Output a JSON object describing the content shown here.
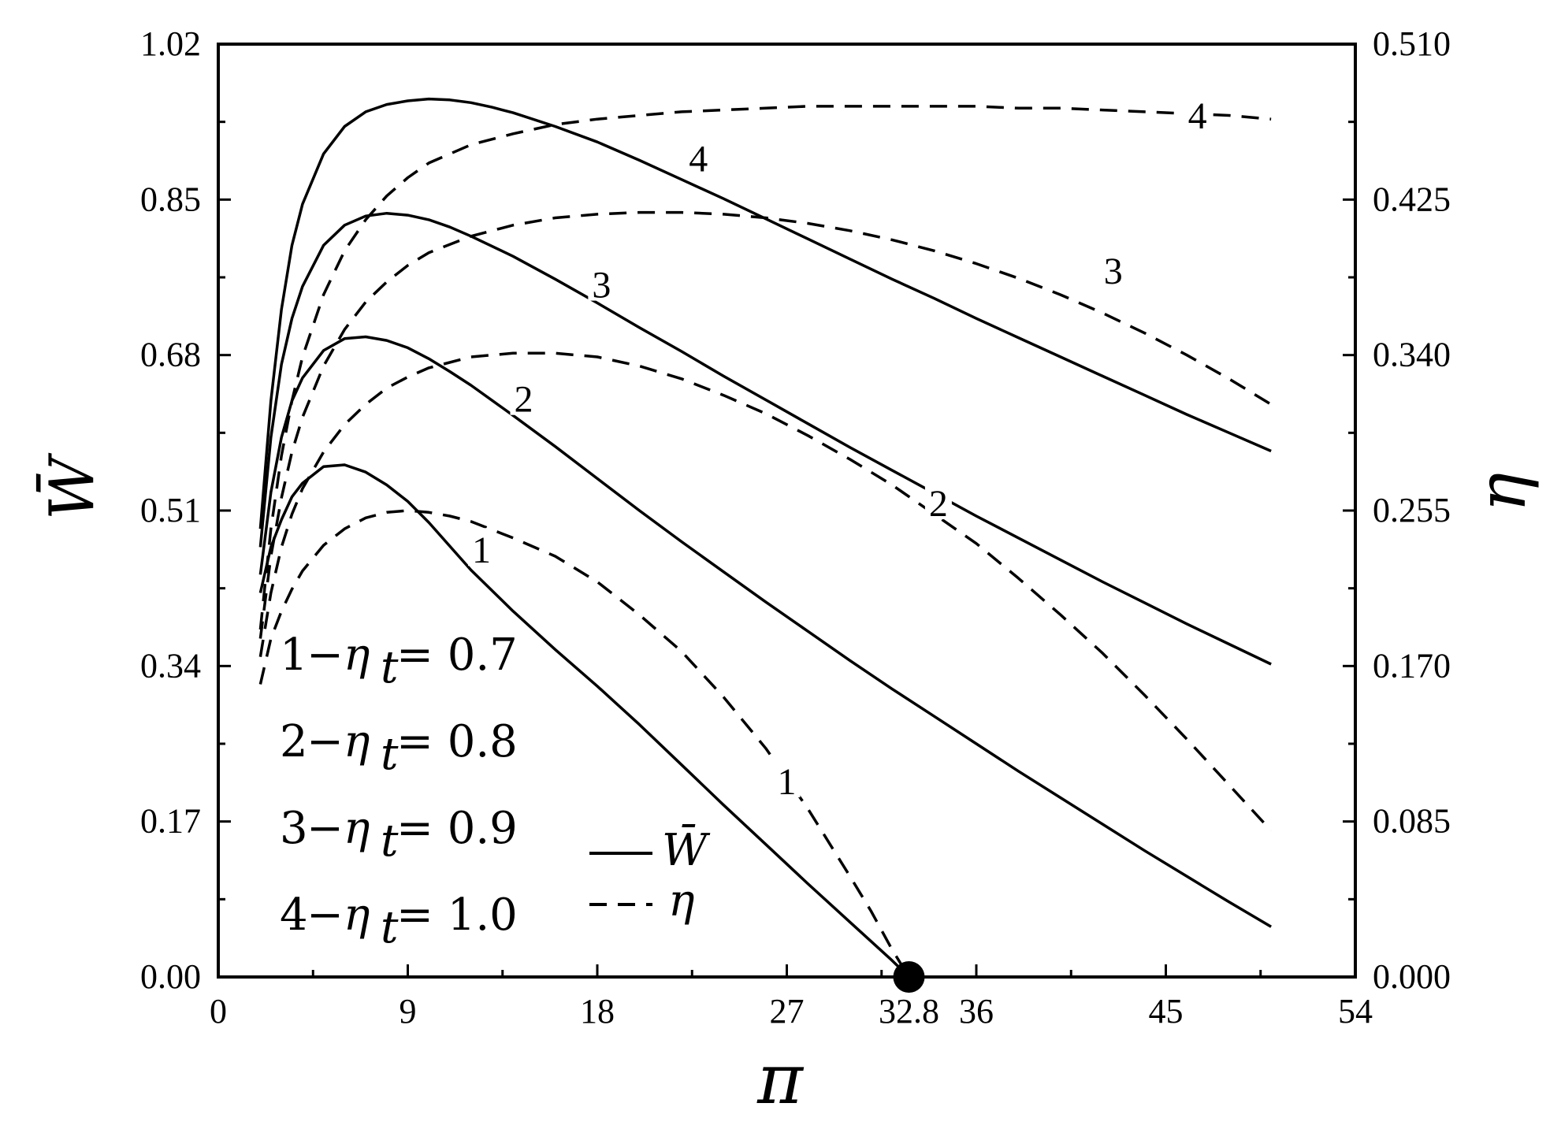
{
  "chart_data": {
    "type": "line",
    "title": "",
    "xlabel": "π",
    "ylabel_left": "W̄",
    "ylabel_right": "η",
    "xlim": [
      0,
      54
    ],
    "ylim_left": [
      0,
      1.02
    ],
    "ylim_right": [
      0,
      0.51
    ],
    "x_ticks": [
      "0",
      "9",
      "18",
      "27",
      "32.8",
      "36",
      "45",
      "54"
    ],
    "x_tick_values": [
      0,
      9,
      18,
      27,
      32.8,
      36,
      45,
      54
    ],
    "y_left_ticks": [
      "0.00",
      "0.17",
      "0.34",
      "0.51",
      "0.68",
      "0.85",
      "1.02"
    ],
    "y_left_tick_values": [
      0,
      0.17,
      0.34,
      0.51,
      0.68,
      0.85,
      1.02
    ],
    "y_right_ticks": [
      "0.000",
      "0.085",
      "0.170",
      "0.255",
      "0.340",
      "0.425",
      "0.510"
    ],
    "y_right_tick_values": [
      0,
      0.085,
      0.17,
      0.255,
      0.34,
      0.425,
      0.51
    ],
    "grid": false,
    "legend_position": "bottom-left",
    "marker_point": {
      "x": 32.8,
      "y": 0,
      "label": "32.8"
    },
    "legend": {
      "cases": [
        {
          "num": "1",
          "eq": "−η",
          "sub": "t",
          "val": " = 0.7"
        },
        {
          "num": "2",
          "eq": "−η",
          "sub": "t",
          "val": " = 0.8"
        },
        {
          "num": "3",
          "eq": "−η",
          "sub": "t",
          "val": " = 0.9"
        },
        {
          "num": "4",
          "eq": "−η",
          "sub": "t",
          "val": " = 1.0"
        }
      ],
      "solid_symbol": "W̄",
      "dashed_symbol": "η"
    },
    "series": [
      {
        "case": "1",
        "quantity": "W",
        "axis": "left",
        "style": "solid",
        "label": "1",
        "label_at": [
          12.5,
          0.465
        ],
        "x": [
          2,
          2.5,
          3,
          3.5,
          4,
          5,
          6,
          7,
          8,
          9,
          10,
          12,
          14,
          16,
          18,
          20,
          22,
          24,
          26,
          28,
          30,
          32,
          32.8
        ],
        "y": [
          0.42,
          0.47,
          0.5,
          0.525,
          0.54,
          0.558,
          0.56,
          0.552,
          0.538,
          0.52,
          0.497,
          0.445,
          0.4,
          0.358,
          0.318,
          0.276,
          0.232,
          0.188,
          0.145,
          0.102,
          0.06,
          0.018,
          0.0
        ]
      },
      {
        "case": "1",
        "quantity": "eta",
        "axis": "right",
        "style": "dashed",
        "label": "1",
        "label_at": [
          27,
          0.106
        ],
        "x": [
          2,
          2.5,
          3,
          3.5,
          4,
          5,
          6,
          7,
          8,
          9,
          10,
          11,
          12,
          14,
          16,
          18,
          20,
          22,
          24,
          26,
          28,
          30,
          31,
          32,
          32.8
        ],
        "y": [
          0.16,
          0.185,
          0.2,
          0.212,
          0.222,
          0.236,
          0.245,
          0.251,
          0.254,
          0.255,
          0.254,
          0.252,
          0.249,
          0.24,
          0.23,
          0.216,
          0.198,
          0.178,
          0.153,
          0.125,
          0.092,
          0.055,
          0.036,
          0.015,
          0.0
        ]
      },
      {
        "case": "2",
        "quantity": "W",
        "axis": "left",
        "style": "solid",
        "label": "2",
        "label_at": [
          14.5,
          0.63
        ],
        "x": [
          2,
          2.5,
          3,
          3.5,
          4,
          5,
          6,
          7,
          8,
          9,
          10,
          11,
          12,
          14,
          16,
          18,
          20,
          22,
          24,
          26,
          28,
          30,
          32,
          34,
          36,
          38,
          40,
          42,
          44,
          46,
          48,
          50
        ],
        "y": [
          0.44,
          0.53,
          0.59,
          0.63,
          0.655,
          0.685,
          0.698,
          0.7,
          0.696,
          0.688,
          0.676,
          0.662,
          0.647,
          0.614,
          0.58,
          0.545,
          0.51,
          0.476,
          0.443,
          0.41,
          0.378,
          0.346,
          0.315,
          0.285,
          0.255,
          0.225,
          0.196,
          0.167,
          0.138,
          0.11,
          0.082,
          0.055
        ]
      },
      {
        "case": "2",
        "quantity": "eta",
        "axis": "right",
        "style": "dashed",
        "label": "2",
        "label_at": [
          34.2,
          0.258
        ],
        "x": [
          2,
          2.5,
          3,
          3.5,
          4,
          5,
          6,
          7,
          8,
          9,
          10,
          12,
          14,
          16,
          18,
          20,
          22,
          24,
          26,
          28,
          30,
          32,
          34,
          36,
          38,
          40,
          42,
          44,
          46,
          48,
          50
        ],
        "y": [
          0.175,
          0.21,
          0.235,
          0.253,
          0.267,
          0.287,
          0.302,
          0.313,
          0.322,
          0.328,
          0.333,
          0.339,
          0.341,
          0.341,
          0.339,
          0.334,
          0.327,
          0.318,
          0.308,
          0.296,
          0.283,
          0.269,
          0.253,
          0.237,
          0.218,
          0.198,
          0.177,
          0.154,
          0.13,
          0.105,
          0.08
        ]
      },
      {
        "case": "3",
        "quantity": "W",
        "axis": "left",
        "style": "solid",
        "label": "3",
        "label_at": [
          18.2,
          0.755
        ],
        "x": [
          2,
          2.5,
          3,
          3.5,
          4,
          5,
          6,
          7,
          8,
          9,
          10,
          11,
          12,
          14,
          16,
          18,
          20,
          22,
          24,
          26,
          28,
          30,
          32,
          34,
          36,
          38,
          40,
          42,
          44,
          46,
          48,
          50
        ],
        "y": [
          0.47,
          0.59,
          0.67,
          0.72,
          0.755,
          0.8,
          0.822,
          0.832,
          0.835,
          0.833,
          0.828,
          0.82,
          0.81,
          0.788,
          0.763,
          0.737,
          0.71,
          0.684,
          0.657,
          0.631,
          0.605,
          0.579,
          0.554,
          0.529,
          0.504,
          0.48,
          0.456,
          0.432,
          0.409,
          0.386,
          0.364,
          0.342
        ]
      },
      {
        "case": "3",
        "quantity": "eta",
        "axis": "right",
        "style": "dashed",
        "label": "3",
        "label_at": [
          42.5,
          0.385
        ],
        "x": [
          2,
          2.5,
          3,
          3.5,
          4,
          5,
          6,
          7,
          8,
          9,
          10,
          12,
          14,
          16,
          18,
          20,
          22,
          24,
          26,
          28,
          30,
          32,
          34,
          36,
          38,
          40,
          42,
          44,
          46,
          48,
          50
        ],
        "y": [
          0.185,
          0.23,
          0.262,
          0.287,
          0.306,
          0.334,
          0.354,
          0.369,
          0.38,
          0.389,
          0.396,
          0.405,
          0.411,
          0.415,
          0.417,
          0.418,
          0.418,
          0.417,
          0.415,
          0.412,
          0.408,
          0.403,
          0.397,
          0.39,
          0.382,
          0.373,
          0.363,
          0.352,
          0.34,
          0.327,
          0.313
        ]
      },
      {
        "case": "4",
        "quantity": "W",
        "axis": "left",
        "style": "solid",
        "label": "4",
        "label_at": [
          22.8,
          0.893
        ],
        "x": [
          2,
          2.5,
          3,
          3.5,
          4,
          5,
          6,
          7,
          8,
          9,
          10,
          11,
          12,
          13,
          14,
          16,
          18,
          20,
          22,
          24,
          26,
          28,
          30,
          32,
          34,
          36,
          38,
          40,
          42,
          44,
          46,
          48,
          50
        ],
        "y": [
          0.49,
          0.63,
          0.73,
          0.8,
          0.845,
          0.9,
          0.93,
          0.946,
          0.954,
          0.958,
          0.96,
          0.959,
          0.956,
          0.951,
          0.945,
          0.93,
          0.913,
          0.893,
          0.872,
          0.851,
          0.829,
          0.807,
          0.785,
          0.763,
          0.742,
          0.72,
          0.699,
          0.678,
          0.657,
          0.636,
          0.615,
          0.595,
          0.575
        ]
      },
      {
        "case": "4",
        "quantity": "eta",
        "axis": "right",
        "style": "dashed",
        "label": "4",
        "label_at": [
          46.5,
          0.47
        ],
        "x": [
          2,
          2.5,
          3,
          3.5,
          4,
          5,
          6,
          7,
          8,
          9,
          10,
          12,
          14,
          16,
          18,
          20,
          22,
          24,
          26,
          28,
          30,
          32,
          34,
          36,
          38,
          40,
          42,
          44,
          46,
          48,
          50
        ],
        "y": [
          0.19,
          0.245,
          0.285,
          0.315,
          0.339,
          0.373,
          0.397,
          0.414,
          0.427,
          0.437,
          0.445,
          0.455,
          0.461,
          0.466,
          0.469,
          0.471,
          0.473,
          0.474,
          0.475,
          0.476,
          0.476,
          0.476,
          0.476,
          0.476,
          0.475,
          0.475,
          0.474,
          0.473,
          0.472,
          0.471,
          0.469
        ]
      }
    ]
  }
}
